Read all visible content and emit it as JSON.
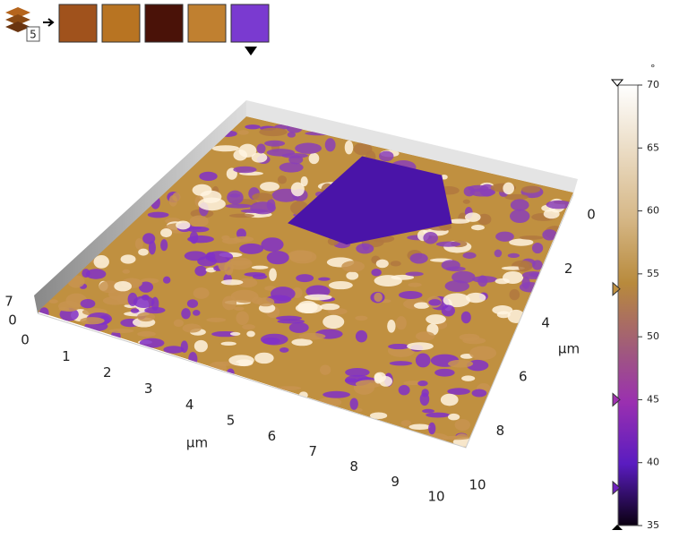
{
  "toolbar": {
    "layer_count": "5"
  },
  "plot": {
    "x_axis": {
      "label": "µm",
      "ticks": [
        "0",
        "1",
        "2",
        "3",
        "4",
        "5",
        "6",
        "7",
        "8",
        "9",
        "10"
      ]
    },
    "y_axis": {
      "label": "µm",
      "ticks": [
        "0",
        "2",
        "4",
        "6",
        "8",
        "10"
      ]
    },
    "z_axis": {
      "ticks": [
        "7",
        "0"
      ]
    }
  },
  "colorbar": {
    "unit": "°",
    "min": 35,
    "max": 70,
    "ticks": [
      35,
      40,
      45,
      50,
      55,
      60,
      65,
      70
    ],
    "markers": [
      53.8,
      45,
      38
    ]
  }
}
